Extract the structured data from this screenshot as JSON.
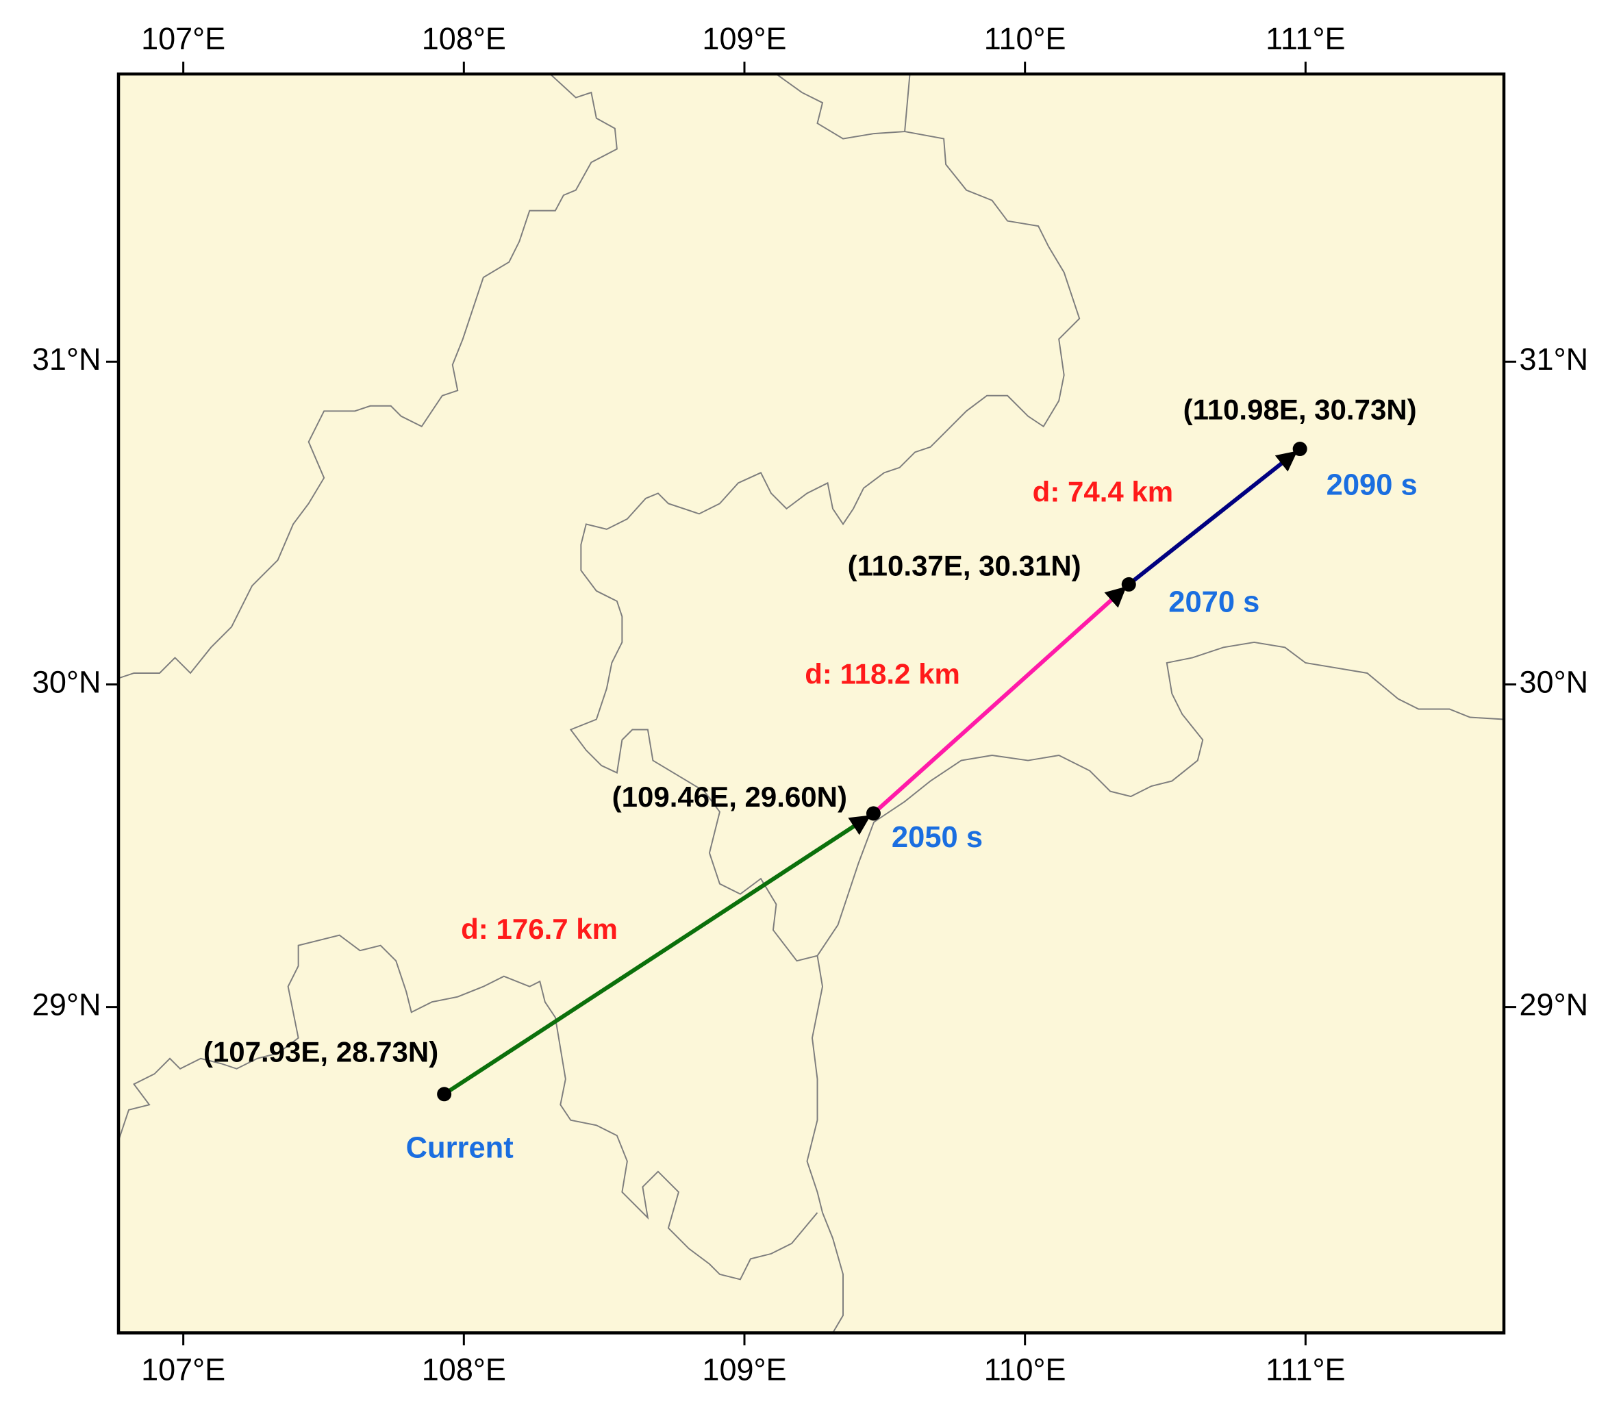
{
  "map": {
    "type": "trajectory",
    "xlim": [
      106.769,
      111.707
    ],
    "ylim": [
      27.99,
      31.892
    ],
    "xticks": [
      {
        "value": 107,
        "label": "107°E"
      },
      {
        "value": 108,
        "label": "108°E"
      },
      {
        "value": 109,
        "label": "109°E"
      },
      {
        "value": 110,
        "label": "110°E"
      },
      {
        "value": 111,
        "label": "111°E"
      }
    ],
    "yticks": [
      {
        "value": 29,
        "label": "29°N"
      },
      {
        "value": 30,
        "label": "30°N"
      },
      {
        "value": 31,
        "label": "31°N"
      }
    ],
    "background": "#fcf7d9",
    "points": [
      {
        "lon": 107.93,
        "lat": 28.73,
        "label": "(107.93E, 28.73N)",
        "time": "Current"
      },
      {
        "lon": 109.46,
        "lat": 29.6,
        "label": "(109.46E, 29.60N)",
        "time": "2050 s"
      },
      {
        "lon": 110.37,
        "lat": 30.31,
        "label": "(110.37E, 30.31N)",
        "time": "2070 s"
      },
      {
        "lon": 110.98,
        "lat": 30.73,
        "label": "(110.98E, 30.73N)",
        "time": "2090 s"
      }
    ],
    "segments": [
      {
        "label": "d: 176.7 km",
        "color": "#0b700b"
      },
      {
        "label": "d: 118.2 km",
        "color": "#ff1aa8"
      },
      {
        "label": "d: 74.4 km",
        "color": "#000080"
      }
    ]
  }
}
